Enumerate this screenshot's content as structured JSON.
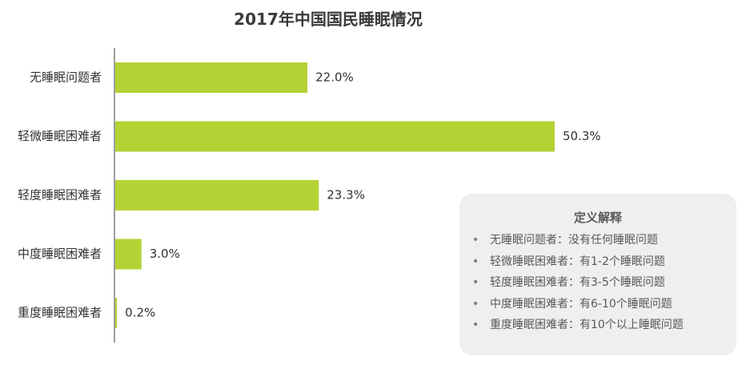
{
  "chart_data": {
    "type": "bar",
    "orientation": "horizontal",
    "title": "2017年中国国民睡眠情况",
    "categories": [
      "无睡眠问题者",
      "轻微睡眠困难者",
      "轻度睡眠困难者",
      "中度睡眠困难者",
      "重度睡眠困难者"
    ],
    "values": [
      22.0,
      50.3,
      23.3,
      3.0,
      0.2
    ],
    "value_labels": [
      "22.0%",
      "50.3%",
      "23.3%",
      "3.0%",
      "0.2%"
    ],
    "xlim": [
      0,
      50.3
    ],
    "grid": false,
    "legend": "none",
    "bar_color": "#b3d334"
  },
  "definition": {
    "title": "定义解释",
    "bullet": "•",
    "items": [
      "无睡眠问题者：没有任何睡眠问题",
      "轻微睡眠困难者：有1-2个睡眠问题",
      "轻度睡眠困难者：有3-5个睡眠问题",
      "中度睡眠困难者：有6-10个睡眠问题",
      "重度睡眠困难者：有10个以上睡眠问题"
    ]
  }
}
